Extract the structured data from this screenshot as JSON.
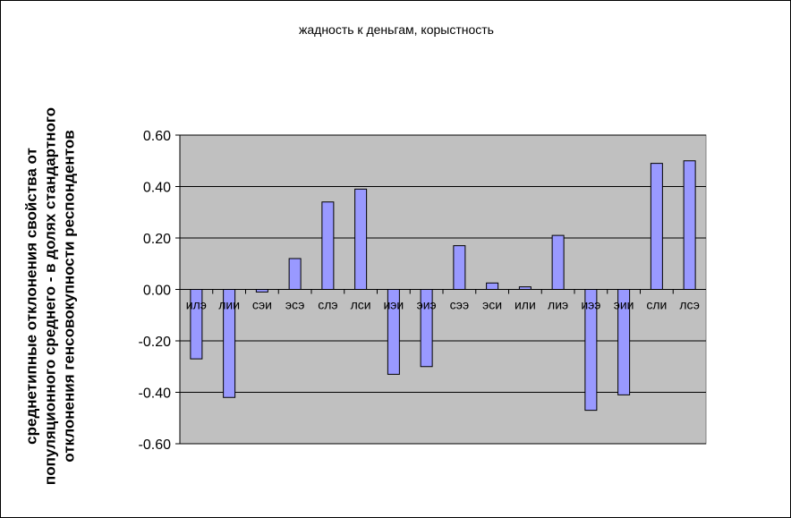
{
  "chart_data": {
    "type": "bar",
    "title": "жадность к деньгам, корыстность",
    "xlabel": "",
    "ylabel": "среднетипные отклонения свойства от популяционного среднего - в долях стандартного отклонения генсовокупности респондентов",
    "ylabel_lines": [
      "среднетипные отклонения свойства от",
      "популяционного среднего - в долях стандартного",
      "отклонения генсовокупности респондентов"
    ],
    "categories": [
      "илэ",
      "лии",
      "сэи",
      "эсэ",
      "слэ",
      "лси",
      "иэи",
      "эиэ",
      "сээ",
      "эси",
      "или",
      "лиэ",
      "иээ",
      "эии",
      "сли",
      "лсэ"
    ],
    "values": [
      -0.27,
      -0.42,
      -0.01,
      0.12,
      0.34,
      0.39,
      -0.33,
      -0.3,
      0.17,
      0.025,
      0.01,
      0.21,
      -0.47,
      -0.41,
      0.49,
      0.5
    ],
    "ylim": [
      -0.6,
      0.6
    ],
    "yticks": [
      "0.60",
      "0.40",
      "0.20",
      "0.00",
      "-0.20",
      "-0.40",
      "-0.60"
    ],
    "grid": true,
    "legend": "none",
    "colors": {
      "bar": "#9999ff",
      "plot_bg": "#c0c0c0"
    }
  }
}
